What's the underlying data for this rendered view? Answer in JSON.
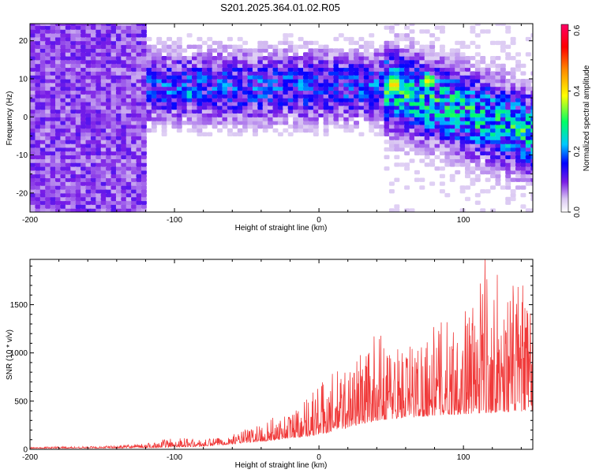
{
  "figure": {
    "title": "S201.2025.364.01.02.R05"
  },
  "chart_data": [
    {
      "type": "heatmap",
      "title": "S201.2025.364.01.02.R05",
      "xlabel": "Height of straight line (km)",
      "ylabel": "Frequency (Hz)",
      "xlim": [
        -200,
        148
      ],
      "ylim": [
        -25,
        24.5
      ],
      "xticks": [
        -200,
        -100,
        0,
        100
      ],
      "yticks": [
        -20,
        -10,
        0,
        10,
        20
      ],
      "colorbar": {
        "label": "Normalized spectral amplitude",
        "range": [
          0,
          0.62
        ],
        "ticks": [
          0.0,
          0.2,
          0.4,
          0.6
        ],
        "tick_labels": [
          "0.0",
          "0.2",
          "0.4",
          "0.6"
        ],
        "colormap": [
          "#ffffff",
          "#d9c6f2",
          "#7a1ee6",
          "#0000ff",
          "#00c8ff",
          "#00ff66",
          "#ffff00",
          "#ff8800",
          "#ff0000",
          "#ff0066"
        ]
      },
      "description_bands": [
        {
          "x_range": [
            -200,
            -120
          ],
          "freq_range": [
            -25,
            24.5
          ],
          "level": "moderate",
          "approx_value": 0.07
        },
        {
          "x_range": [
            -120,
            45
          ],
          "freq_range": [
            -2,
            24.5
          ],
          "level": "moderate-high",
          "approx_value": 0.12
        },
        {
          "x_range": [
            45,
            148
          ],
          "freq_range": [
            -10,
            20
          ],
          "level": "high",
          "approx_value": 0.22
        }
      ],
      "hotspots": [
        {
          "x": 52,
          "freq": 8.5,
          "value": 0.5
        },
        {
          "x": 76,
          "freq": 9.5,
          "value": 0.45
        },
        {
          "x": 62,
          "freq": 6,
          "value": 0.35
        },
        {
          "x": 122,
          "freq": -5,
          "value": 0.3
        },
        {
          "x": -90,
          "freq": 6,
          "value": 0.28
        }
      ]
    },
    {
      "type": "line",
      "title": "",
      "xlabel": "Height of straight line (km)",
      "ylabel": "SNR (10 * v/v)",
      "xlim": [
        -200,
        148
      ],
      "ylim": [
        0,
        1970
      ],
      "xticks": [
        -200,
        -100,
        0,
        100
      ],
      "yticks": [
        0,
        500,
        1000,
        1500
      ],
      "color": "#f03a3a",
      "envelope": [
        {
          "x": -200,
          "y": 20
        },
        {
          "x": -180,
          "y": 30
        },
        {
          "x": -160,
          "y": 30
        },
        {
          "x": -140,
          "y": 40
        },
        {
          "x": -120,
          "y": 60
        },
        {
          "x": -100,
          "y": 130
        },
        {
          "x": -80,
          "y": 100
        },
        {
          "x": -60,
          "y": 150
        },
        {
          "x": -40,
          "y": 280
        },
        {
          "x": -20,
          "y": 400
        },
        {
          "x": 0,
          "y": 700
        },
        {
          "x": 20,
          "y": 900
        },
        {
          "x": 40,
          "y": 1200
        },
        {
          "x": 60,
          "y": 1100
        },
        {
          "x": 80,
          "y": 1300
        },
        {
          "x": 100,
          "y": 1450
        },
        {
          "x": 110,
          "y": 1600
        },
        {
          "x": 115,
          "y": 1970
        },
        {
          "x": 130,
          "y": 1700
        },
        {
          "x": 140,
          "y": 1750
        },
        {
          "x": 148,
          "y": 1400
        }
      ],
      "baseline": [
        {
          "x": -200,
          "y": 10
        },
        {
          "x": -120,
          "y": 15
        },
        {
          "x": -80,
          "y": 30
        },
        {
          "x": -40,
          "y": 80
        },
        {
          "x": 0,
          "y": 150
        },
        {
          "x": 40,
          "y": 300
        },
        {
          "x": 80,
          "y": 350
        },
        {
          "x": 120,
          "y": 380
        },
        {
          "x": 148,
          "y": 400
        }
      ]
    }
  ]
}
